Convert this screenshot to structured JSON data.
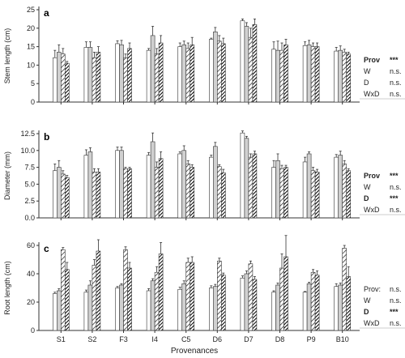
{
  "chart_data": [
    {
      "type": "bar",
      "panel": "a",
      "ylabel": "Stem length (cm)",
      "ylim": [
        0,
        25
      ],
      "yticks": [
        0,
        5,
        10,
        15,
        20,
        25
      ],
      "categories": [
        "S1",
        "S2",
        "F3",
        "I4",
        "C5",
        "D6",
        "D7",
        "D8",
        "P9",
        "B10"
      ],
      "series": [
        {
          "pattern": "white",
          "values": [
            12.0,
            14.8,
            15.8,
            14.0,
            15.0,
            17.0,
            22.0,
            14.3,
            15.3,
            13.8
          ],
          "errors": [
            2.0,
            1.5,
            0.8,
            0.5,
            1.0,
            0.3,
            0.5,
            2.0,
            1.0,
            1.0
          ]
        },
        {
          "pattern": "gray",
          "values": [
            13.5,
            14.8,
            15.5,
            18.0,
            15.5,
            19.0,
            20.5,
            14.0,
            15.5,
            14.0
          ],
          "errors": [
            2.0,
            1.5,
            1.2,
            2.5,
            1.0,
            1.2,
            1.0,
            2.5,
            1.2,
            1.2
          ]
        },
        {
          "pattern": "hatch-light",
          "values": [
            13.0,
            12.0,
            12.0,
            13.0,
            14.5,
            16.5,
            17.5,
            14.0,
            15.0,
            13.5
          ],
          "errors": [
            1.5,
            1.5,
            1.0,
            1.5,
            1.5,
            1.5,
            2.5,
            2.0,
            1.0,
            0.8
          ]
        },
        {
          "pattern": "hatch-dark",
          "values": [
            10.5,
            13.5,
            14.5,
            16.0,
            15.5,
            15.8,
            21.0,
            15.5,
            15.0,
            13.0
          ],
          "errors": [
            0.5,
            1.5,
            1.5,
            2.0,
            2.0,
            1.5,
            1.5,
            1.5,
            1.0,
            0.5
          ]
        }
      ],
      "stats": [
        {
          "label": "Prov",
          "value": "***",
          "bold": true
        },
        {
          "label": "W",
          "value": "n.s.",
          "bold": false
        },
        {
          "label": "D",
          "value": "n.s.",
          "bold": false
        },
        {
          "label": "WxD",
          "value": "n.s.",
          "bold": false
        }
      ]
    },
    {
      "type": "bar",
      "panel": "b",
      "ylabel": "Diameter (mm)",
      "ylim": [
        0,
        12.5
      ],
      "yticks": [
        0.0,
        2.5,
        5.0,
        7.5,
        10.0,
        12.5
      ],
      "categories": [
        "S1",
        "S2",
        "F3",
        "I4",
        "C5",
        "D6",
        "D7",
        "D8",
        "P9",
        "B10"
      ],
      "series": [
        {
          "pattern": "white",
          "values": [
            7.0,
            9.3,
            10.0,
            9.3,
            9.5,
            9.0,
            12.6,
            7.5,
            8.3,
            9.0
          ],
          "errors": [
            1.0,
            0.8,
            0.5,
            0.4,
            0.3,
            0.3,
            0.3,
            1.0,
            0.7,
            0.4
          ]
        },
        {
          "pattern": "gray",
          "values": [
            7.5,
            9.8,
            10.0,
            11.3,
            10.0,
            10.6,
            11.8,
            8.5,
            9.5,
            9.3
          ],
          "errors": [
            1.0,
            0.6,
            0.5,
            1.3,
            0.7,
            0.6,
            0.3,
            1.0,
            0.3,
            0.6
          ]
        },
        {
          "pattern": "hatch-light",
          "values": [
            6.5,
            6.8,
            7.3,
            7.5,
            8.0,
            7.6,
            9.0,
            7.3,
            7.0,
            8.0
          ],
          "errors": [
            0.5,
            0.5,
            0.2,
            0.8,
            0.5,
            0.3,
            0.5,
            0.5,
            0.5,
            0.5
          ]
        },
        {
          "pattern": "hatch-dark",
          "values": [
            6.0,
            6.8,
            7.3,
            8.8,
            7.5,
            6.7,
            9.5,
            7.5,
            6.8,
            7.0
          ],
          "errors": [
            0.3,
            0.5,
            0.2,
            1.0,
            0.4,
            0.5,
            0.4,
            0.3,
            0.4,
            0.3
          ]
        }
      ],
      "stats": [
        {
          "label": "Prov",
          "value": "***",
          "bold": true
        },
        {
          "label": "W",
          "value": "n.s.",
          "bold": false
        },
        {
          "label": "D",
          "value": "***",
          "bold": true
        },
        {
          "label": "WxD",
          "value": "n.s.",
          "bold": false
        }
      ]
    },
    {
      "type": "bar",
      "panel": "c",
      "ylabel": "Root length (cm)",
      "ylim": [
        0,
        60
      ],
      "yticks": [
        0,
        20,
        40,
        60
      ],
      "categories": [
        "S1",
        "S2",
        "F3",
        "I4",
        "C5",
        "D6",
        "D7",
        "D8",
        "P9",
        "B10"
      ],
      "series": [
        {
          "pattern": "white",
          "values": [
            26,
            27,
            30,
            28,
            29,
            30,
            37,
            27,
            27,
            31
          ],
          "errors": [
            1.0,
            1.5,
            1.0,
            1.5,
            1.5,
            1.5,
            1.5,
            1.0,
            0.5,
            2.0
          ]
        },
        {
          "pattern": "gray",
          "values": [
            28,
            32,
            32,
            35,
            33,
            31,
            40,
            32,
            33,
            32
          ],
          "errors": [
            1.5,
            3.0,
            1.0,
            1.5,
            2.0,
            1.5,
            2.0,
            1.5,
            1.0,
            1.5
          ]
        },
        {
          "pattern": "hatch-light",
          "values": [
            57,
            46,
            57,
            41,
            48,
            49,
            47,
            44,
            41,
            58
          ],
          "errors": [
            1.5,
            4.0,
            2.0,
            4.0,
            3.0,
            2.0,
            2.0,
            10.0,
            2.0,
            2.0
          ]
        },
        {
          "pattern": "hatch-dark",
          "values": [
            43,
            56,
            44,
            54,
            48,
            39,
            36,
            52,
            39,
            38
          ],
          "errors": [
            5.0,
            8.0,
            4.0,
            8.0,
            4.0,
            1.5,
            2.0,
            15.0,
            3.0,
            7.0
          ]
        }
      ],
      "stats": [
        {
          "label": "Prov:",
          "value": "n.s.",
          "bold": false
        },
        {
          "label": "W",
          "value": "n.s.",
          "bold": false
        },
        {
          "label": "D",
          "value": "***",
          "bold": true
        },
        {
          "label": "WxD",
          "value": "n.s.",
          "bold": false
        }
      ]
    }
  ],
  "xlabel": "Provenances",
  "colors": {
    "white_fill": "#ffffff",
    "gray_fill": "#d0d0d0",
    "hatch_light_line": "#333333",
    "hatch_dark_line": "#000000",
    "axis": "#333333",
    "error_bar": "#333333"
  }
}
